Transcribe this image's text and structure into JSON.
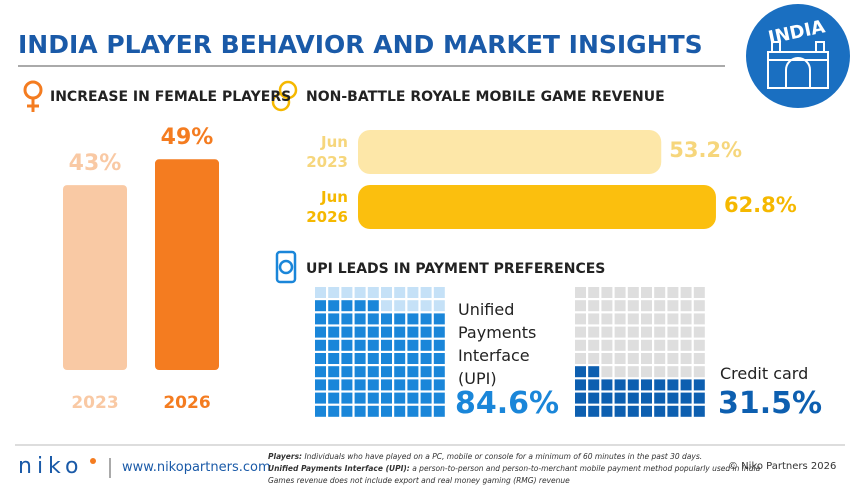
{
  "header": {
    "title": "INDIA PLAYER BEHAVIOR AND MARKET INSIGHTS",
    "badge": "INDIA"
  },
  "chart_data": [
    {
      "type": "bar",
      "title": "INCREASE IN FEMALE PLAYERS",
      "categories": [
        "2023",
        "2026"
      ],
      "values": [
        43,
        49
      ],
      "value_labels": [
        "43%",
        "49%"
      ],
      "colors": [
        "#f9c9a4",
        "#f47c20"
      ]
    },
    {
      "type": "hbar",
      "title": "NON-BATTLE ROYALE MOBILE GAME REVENUE",
      "categories": [
        "Jun 2023",
        "Jun 2026"
      ],
      "values": [
        53.2,
        62.8
      ],
      "value_labels": [
        "53.2%",
        "62.8%"
      ],
      "colors": [
        "#fde7a8",
        "#fbbf0e"
      ],
      "label_colors": [
        "#f6d67c",
        "#f5b800"
      ]
    },
    {
      "type": "waffle",
      "title": "UPI LEADS IN PAYMENT PREFERENCES",
      "series": [
        {
          "name": "Unified Payments Interface (UPI)",
          "values": [
            84.6
          ],
          "value_labels": [
            "84.6%"
          ],
          "color": "#1a86d9",
          "empty_color": "#c5e1f7"
        },
        {
          "name": "Credit card",
          "values": [
            31.5
          ],
          "value_labels": [
            "31.5%"
          ],
          "color": "#0d5fb0",
          "empty_color": "#dedede"
        }
      ]
    }
  ],
  "footer": {
    "logo": "niko",
    "website": "www.nikopartners.com",
    "notes": [
      {
        "term": "Players:",
        "text": "Individuals who have played on a PC, mobile or console for a minimum of 60 minutes in the past 30 days."
      },
      {
        "term": "Unified Payments Interface (UPI):",
        "text": "a person-to-person and person-to-merchant mobile payment method popularly used in India"
      },
      {
        "text": "Games revenue does not include export and real money gaming (RMG) revenue"
      }
    ],
    "copyright": "© Niko Partners 2026"
  }
}
